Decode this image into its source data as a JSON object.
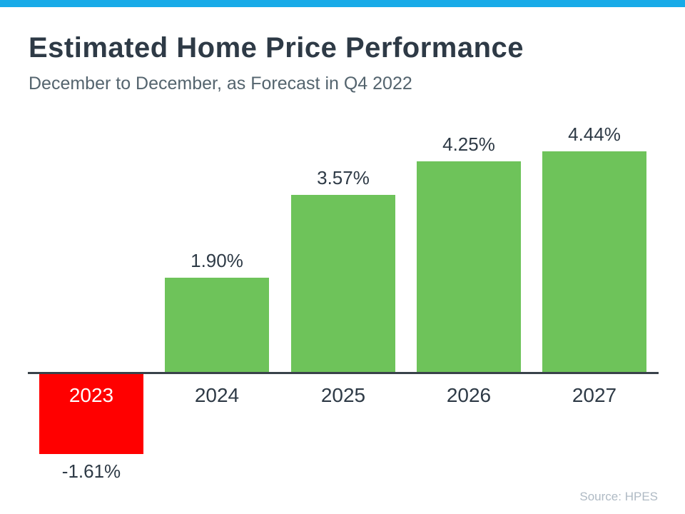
{
  "header": {
    "title": "Estimated Home Price Performance",
    "subtitle": "December to December, as Forecast in Q4 2022"
  },
  "chart_data": {
    "type": "bar",
    "categories": [
      "2023",
      "2024",
      "2025",
      "2026",
      "2027"
    ],
    "values": [
      -1.61,
      1.9,
      3.57,
      4.25,
      4.44
    ],
    "value_labels": [
      "-1.61%",
      "1.90%",
      "3.57%",
      "4.25%",
      "4.44%"
    ],
    "bar_colors": [
      "#FF0000",
      "#6EC35A",
      "#6EC35A",
      "#6EC35A",
      "#6EC35A"
    ],
    "title": "Estimated Home Price Performance",
    "subtitle": "December to December, as Forecast in Q4 2022",
    "xlabel": "",
    "ylabel": "",
    "ylim": [
      -2,
      5
    ],
    "baseline": 0,
    "grid": false,
    "legend": false,
    "negative_label_position": "below-bar",
    "negative_category_label_position": "inside-bar-white"
  },
  "footer": {
    "source": "Source: HPES"
  },
  "colors": {
    "accent_bar": "#18ABE8",
    "title_text": "#2E3A46",
    "subtitle_text": "#54646E",
    "label_text": "#2E3A46",
    "axis_line": "#39424A",
    "source_text": "#AFBAC4",
    "positive_bar": "#6EC35A",
    "negative_bar": "#FF0000"
  }
}
